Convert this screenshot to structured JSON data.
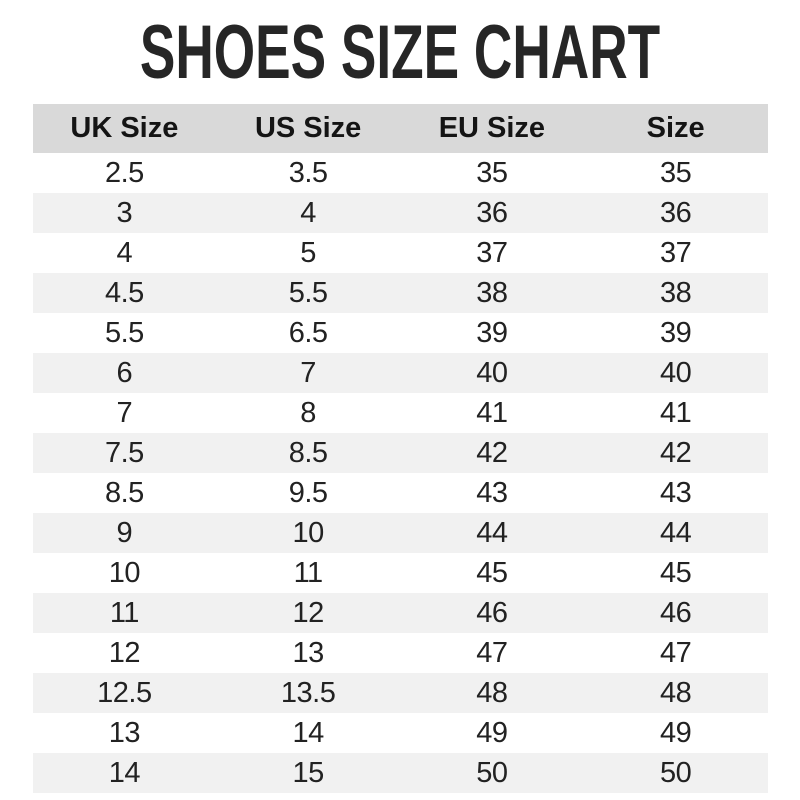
{
  "title": "SHOES SIZE CHART",
  "colors": {
    "page_bg": "#ffffff",
    "title_color": "#262626",
    "header_bg": "#d9d9d9",
    "header_text": "#141414",
    "alt_row_bg": "#f1f1f1",
    "row_bg": "#ffffff",
    "cell_text": "#222222"
  },
  "table": {
    "columns": [
      "UK Size",
      "US Size",
      "EU Size",
      "Size"
    ],
    "rows": [
      [
        "2.5",
        "3.5",
        "35",
        "35"
      ],
      [
        "3",
        "4",
        "36",
        "36"
      ],
      [
        "4",
        "5",
        "37",
        "37"
      ],
      [
        "4.5",
        "5.5",
        "38",
        "38"
      ],
      [
        "5.5",
        "6.5",
        "39",
        "39"
      ],
      [
        "6",
        "7",
        "40",
        "40"
      ],
      [
        "7",
        "8",
        "41",
        "41"
      ],
      [
        "7.5",
        "8.5",
        "42",
        "42"
      ],
      [
        "8.5",
        "9.5",
        "43",
        "43"
      ],
      [
        "9",
        "10",
        "44",
        "44"
      ],
      [
        "10",
        "11",
        "45",
        "45"
      ],
      [
        "11",
        "12",
        "46",
        "46"
      ],
      [
        "12",
        "13",
        "47",
        "47"
      ],
      [
        "12.5",
        "13.5",
        "48",
        "48"
      ],
      [
        "13",
        "14",
        "49",
        "49"
      ],
      [
        "14",
        "15",
        "50",
        "50"
      ]
    ]
  },
  "chart_data": {
    "type": "table",
    "title": "SHOES SIZE CHART",
    "columns": [
      "UK Size",
      "US Size",
      "EU Size",
      "Size"
    ],
    "rows": [
      [
        "2.5",
        "3.5",
        "35",
        "35"
      ],
      [
        "3",
        "4",
        "36",
        "36"
      ],
      [
        "4",
        "5",
        "37",
        "37"
      ],
      [
        "4.5",
        "5.5",
        "38",
        "38"
      ],
      [
        "5.5",
        "6.5",
        "39",
        "39"
      ],
      [
        "6",
        "7",
        "40",
        "40"
      ],
      [
        "7",
        "8",
        "41",
        "41"
      ],
      [
        "7.5",
        "8.5",
        "42",
        "42"
      ],
      [
        "8.5",
        "9.5",
        "43",
        "43"
      ],
      [
        "9",
        "10",
        "44",
        "44"
      ],
      [
        "10",
        "11",
        "45",
        "45"
      ],
      [
        "11",
        "12",
        "46",
        "46"
      ],
      [
        "12",
        "13",
        "47",
        "47"
      ],
      [
        "12.5",
        "13.5",
        "48",
        "48"
      ],
      [
        "13",
        "14",
        "49",
        "49"
      ],
      [
        "14",
        "15",
        "50",
        "50"
      ]
    ],
    "layout": {
      "header_background": "#d9d9d9",
      "zebra_striping": true,
      "stripe_color": "#f1f1f1",
      "borders": "none",
      "text_align": "center"
    }
  }
}
